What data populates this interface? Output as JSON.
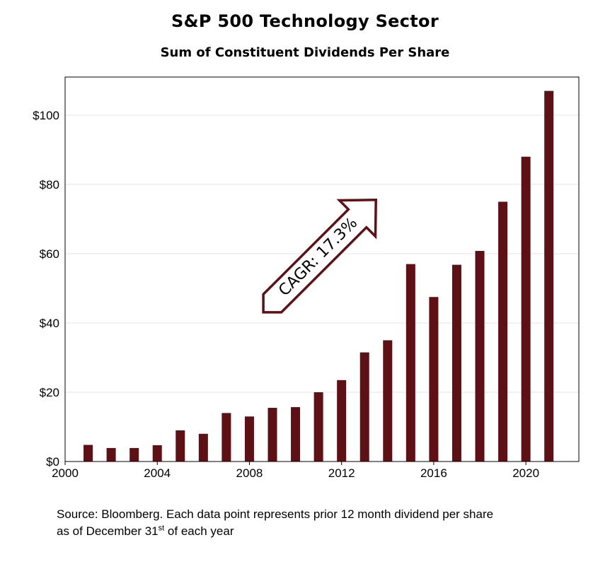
{
  "chart_data": {
    "type": "bar",
    "title": "S&P 500 Technology Sector",
    "subtitle": "Sum of Constituent Dividends Per Share",
    "x": [
      2001,
      2002,
      2003,
      2004,
      2005,
      2006,
      2007,
      2008,
      2009,
      2010,
      2011,
      2012,
      2013,
      2014,
      2015,
      2016,
      2017,
      2018,
      2019,
      2020,
      2021
    ],
    "values": [
      4.8,
      3.9,
      3.9,
      4.7,
      9.0,
      8.0,
      14.0,
      13.0,
      15.5,
      15.7,
      20.0,
      23.5,
      31.5,
      35.0,
      57.0,
      47.5,
      56.8,
      60.8,
      75.0,
      88.0,
      107.0
    ],
    "xlim": [
      2000,
      2022.3
    ],
    "ylim": [
      0,
      111
    ],
    "xticks": [
      2000,
      2004,
      2008,
      2012,
      2016,
      2020
    ],
    "yticks": [
      0,
      20,
      40,
      60,
      80,
      100
    ],
    "ytick_labels": [
      "$0",
      "$20",
      "$40",
      "$60",
      "$80",
      "$100"
    ],
    "xlabel": "",
    "ylabel": "",
    "grid": true,
    "bar_color": "#5e1014",
    "annotation": {
      "text": "CAGR: 17.3%",
      "shape": "arrow",
      "direction": "up-right",
      "border_color": "#5e1014"
    }
  },
  "source": {
    "line1": "Source: Bloomberg. Each data point represents prior 12 month dividend per share",
    "line2_before": "as of December 31",
    "line2_sup": "st",
    "line2_after": " of each year"
  }
}
